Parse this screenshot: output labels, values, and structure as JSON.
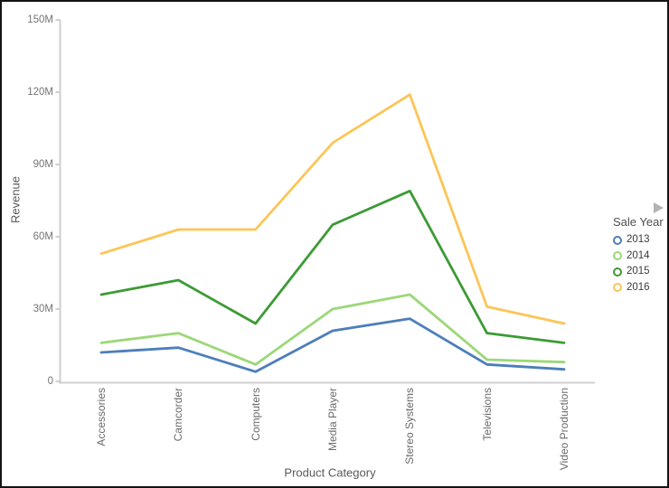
{
  "window": {
    "background": "#ffffff",
    "border_color": "#141414"
  },
  "chart_data": {
    "type": "line",
    "title": "",
    "xlabel": "Product Category",
    "ylabel": "Revenue",
    "unit": "M",
    "categories": [
      "Accessories",
      "Camcorder",
      "Computers",
      "Media Player",
      "Stereo Systems",
      "Televisions",
      "Video Production"
    ],
    "series": [
      {
        "name": "2013",
        "color": "#4D7EBB",
        "values": [
          12,
          14,
          4,
          21,
          26,
          7,
          5
        ]
      },
      {
        "name": "2014",
        "color": "#9CD778",
        "values": [
          16,
          20,
          7,
          30,
          36,
          9,
          8
        ]
      },
      {
        "name": "2015",
        "color": "#3C9B35",
        "values": [
          36,
          42,
          24,
          65,
          79,
          20,
          16
        ]
      },
      {
        "name": "2016",
        "color": "#FCC556",
        "values": [
          53,
          63,
          63,
          99,
          119,
          31,
          24
        ]
      }
    ],
    "y_axis": {
      "min": 0,
      "max": 150,
      "tick_values": [
        0,
        30,
        60,
        90,
        120,
        150
      ],
      "tick_labels": [
        "0",
        "30M",
        "60M",
        "90M",
        "120M",
        "150M"
      ]
    },
    "grid": false,
    "legend": {
      "title": "Sale Year",
      "position": "right",
      "marker": "ring",
      "expand_icon": "right-arrow"
    },
    "style": {
      "axis_line_color": "#cfcfcf",
      "tick_text_color": "#757575",
      "category_text_color": "#6b6b6b",
      "axis_title_color": "#595959",
      "legend_title_color": "#4f4f4f",
      "legend_item_color": "#3c3c3c",
      "expand_icon_color": "#b3b3b3",
      "line_width": 2.8
    }
  }
}
